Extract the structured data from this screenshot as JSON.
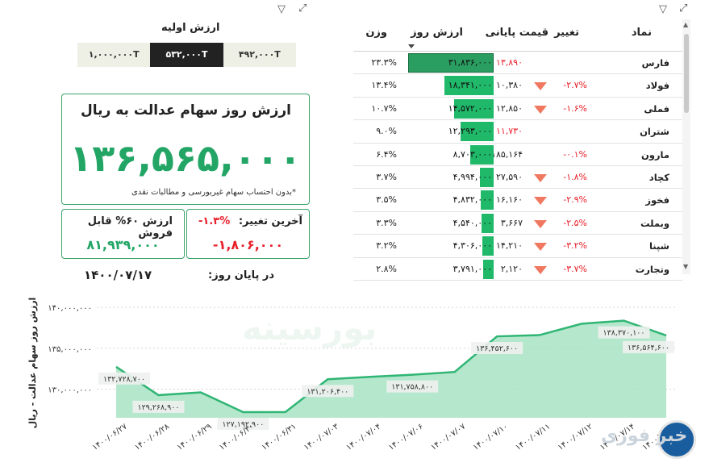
{
  "table": {
    "headers": {
      "symbol": "نماد",
      "change": "تغییر",
      "close": "قیمت پایانی",
      "value": "ارزش روز",
      "weight": "وزن"
    },
    "rows": [
      {
        "symbol": "فارس",
        "change": "",
        "close": "۱۳,۸۹۰",
        "close_red": true,
        "value": "۳۱,۸۳۶,۰۰۰",
        "value_num": 31836000,
        "weight": "۲۳.۳%"
      },
      {
        "symbol": "فولاد",
        "change": "-۲.۷%",
        "close": "۱۰,۳۸۰",
        "close_red": false,
        "value": "۱۸,۳۴۱,۰۰۰",
        "value_num": 18341000,
        "weight": "۱۳.۴%"
      },
      {
        "symbol": "فملی",
        "change": "-۱.۶%",
        "close": "۱۲,۸۵۰",
        "close_red": false,
        "value": "۱۴,۵۷۲,۰۰۰",
        "value_num": 14572000,
        "weight": "۱۰.۷%"
      },
      {
        "symbol": "شتران",
        "change": "",
        "close": "۱۱,۷۳۰",
        "close_red": true,
        "value": "۱۲,۲۹۳,۰۰۰",
        "value_num": 12293000,
        "weight": "۹.۰%"
      },
      {
        "symbol": "مارون",
        "change": "-۰.۱%",
        "close": "۱۸۵,۱۶۴",
        "close_red": false,
        "value": "۸,۷۰۳,۰۰۰",
        "value_num": 8703000,
        "weight": "۶.۴%"
      },
      {
        "symbol": "کچاد",
        "change": "-۱.۸%",
        "close": "۲۷,۵۹۰",
        "close_red": false,
        "value": "۴,۹۹۴,۰۰۰",
        "value_num": 4994000,
        "weight": "۳.۷%"
      },
      {
        "symbol": "فخوز",
        "change": "-۲.۹%",
        "close": "۱۶,۱۶۰",
        "close_red": false,
        "value": "۴,۸۳۲,۰۰۰",
        "value_num": 4832000,
        "weight": "۳.۵%"
      },
      {
        "symbol": "وبملت",
        "change": "-۲.۵%",
        "close": "۳,۶۶۷",
        "close_red": false,
        "value": "۴,۵۴۰,۰۰۰",
        "value_num": 4540000,
        "weight": "۳.۳%"
      },
      {
        "symbol": "شپنا",
        "change": "-۳.۲%",
        "close": "۱۴,۲۱۰",
        "close_red": false,
        "value": "۴,۳۰۶,۰۰۰",
        "value_num": 4306000,
        "weight": "۳.۲%"
      },
      {
        "symbol": "وتجارت",
        "change": "-۳.۷%",
        "close": "۲,۱۲۰",
        "close_red": false,
        "value": "۳,۷۹۱,۰۰۰",
        "value_num": 3791000,
        "weight": "۲.۸%"
      }
    ]
  },
  "slicer": {
    "label": "ارزش اولیه",
    "options": [
      "۱,۰۰۰,۰۰۰T",
      "۵۳۲,۰۰۰T",
      "۴۹۲,۰۰۰T"
    ],
    "selected": "۵۳۲,۰۰۰T"
  },
  "main_card": {
    "title": "ارزش روز سهام عدالت به ریال",
    "value": "۱۳۶,۵۶۵,۰۰۰",
    "note": "*بدون احتساب سهام غیربورسی و مطالبات نقدی"
  },
  "sell_card": {
    "label": "ارزش ۶۰% قابل فروش",
    "value": "۸۱,۹۳۹,۰۰۰"
  },
  "change_card": {
    "label": "آخرین تغییر:",
    "pct": "-۱.۳%",
    "value": "-۱,۸۰۶,۰۰۰"
  },
  "end_of_day": {
    "label": "در پایان روز:",
    "date": "۱۴۰۰/۰۷/۱۷"
  },
  "watermark": "بورسینه",
  "logo_text": "خبر فوری",
  "colors": {
    "accent": "#22a565",
    "negative": "#e8202a",
    "area": "#a8e3c4",
    "line": "#2fb574"
  },
  "chart_data": {
    "type": "area",
    "ylabel": "ارزش روز سهام عدالت - ریال",
    "yticks": [
      "۱۴۰,۰۰۰,۰۰۰",
      "۱۳۵,۰۰۰,۰۰۰",
      "۱۳۰,۰۰۰,۰۰۰"
    ],
    "ytick_values": [
      140000000,
      135000000,
      130000000
    ],
    "ylim": [
      126500000,
      140500000
    ],
    "x": [
      "۱۴۰۰/۰۶/۲۷",
      "۱۴۰۰/۰۶/۲۸",
      "۱۴۰۰/۰۶/۲۹",
      "۱۴۰۰/۰۶/۳۰",
      "۱۴۰۰/۰۶/۳۱",
      "۱۴۰۰/۰۷/۰۳",
      "۱۴۰۰/۰۷/۰۴",
      "۱۴۰۰/۰۷/۰۶",
      "۱۴۰۰/۰۷/۰۷",
      "۱۴۰۰/۰۷/۱۰",
      "۱۴۰۰/۰۷/۱۱",
      "۱۴۰۰/۰۷/۱۲",
      "۱۴۰۰/۰۷/۱۴",
      "۱۴۰۰/۰۷/۱۷"
    ],
    "values": [
      132728700,
      129268900,
      129600000,
      127192900,
      127200000,
      131206400,
      131500000,
      131758800,
      132100000,
      136452600,
      136600000,
      138000000,
      138370100,
      136564600
    ],
    "data_labels": [
      "۱۳۲,۷۲۸,۷۰۰",
      "۱۲۹,۲۶۸,۹۰۰",
      "",
      "۱۲۷,۱۹۲,۹۰۰",
      "",
      "۱۳۱,۲۰۶,۴۰۰",
      "",
      "۱۳۱,۷۵۸,۸۰۰",
      "",
      "۱۳۶,۴۵۲,۶۰۰",
      "",
      "",
      "۱۳۸,۳۷۰,۱۰۰",
      "۱۳۶,۵۶۴,۶۰۰"
    ],
    "grid": true
  }
}
